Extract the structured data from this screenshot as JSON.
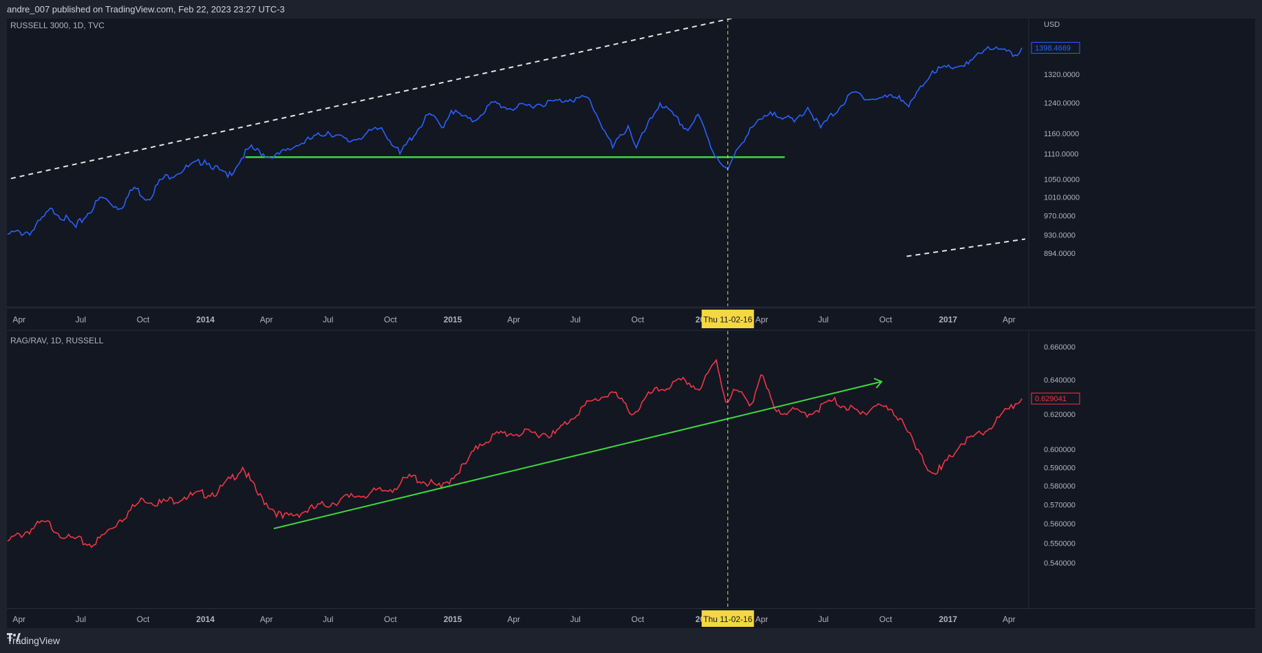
{
  "header": {
    "text": "andre_007 published on TradingView.com, Feb 22, 2023 23:27 UTC-3"
  },
  "footer": {
    "brand": "TradingView",
    "logo_icon": "tradingview-logo-icon"
  },
  "colors": {
    "background": "#131722",
    "frame": "#1e222d",
    "blue_series": "#2962ff",
    "red_series": "#f23645",
    "green_line": "#3cdc3c",
    "crosshair": "#f5d742",
    "dashed_channel": "#e6e6e6"
  },
  "crosshair": {
    "label": "Thu 11-02-16"
  },
  "chart_data": [
    {
      "type": "line",
      "legend": "RUSSELL 3000, 1D, TVC",
      "currency": "USD",
      "y_ticks": [
        "1320.0000",
        "1240.0000",
        "1160.0000",
        "1110.0000",
        "1050.0000",
        "1010.0000",
        "970.0000",
        "930.0000",
        "894.0000"
      ],
      "y_tick_values": [
        1320,
        1240,
        1160,
        1110,
        1050,
        1010,
        970,
        930,
        894
      ],
      "last_value": "1398.4669",
      "x_ticks": [
        "Apr",
        "Jul",
        "Oct",
        "2014",
        "Apr",
        "Jul",
        "Oct",
        "2015",
        "Apr",
        "Jul",
        "Oct",
        "20",
        "Apr",
        "Jul",
        "Oct",
        "2017",
        "Apr"
      ],
      "series": [
        {
          "color": "#2962ff",
          "points": [
            [
              "2013-03-15",
              932
            ],
            [
              "2013-04-20",
              938
            ],
            [
              "2013-05-20",
              985
            ],
            [
              "2013-06-24",
              946
            ],
            [
              "2013-08-01",
              1010
            ],
            [
              "2013-08-28",
              985
            ],
            [
              "2013-09-18",
              1032
            ],
            [
              "2013-10-08",
              1005
            ],
            [
              "2013-10-28",
              1050
            ],
            [
              "2013-12-31",
              1095
            ],
            [
              "2014-02-03",
              1055
            ],
            [
              "2014-03-07",
              1125
            ],
            [
              "2014-04-11",
              1100
            ],
            [
              "2014-05-15",
              1130
            ],
            [
              "2014-07-01",
              1165
            ],
            [
              "2014-07-31",
              1140
            ],
            [
              "2014-09-18",
              1175
            ],
            [
              "2014-10-15",
              1110
            ],
            [
              "2014-11-28",
              1212
            ],
            [
              "2014-12-16",
              1175
            ],
            [
              "2014-12-30",
              1220
            ],
            [
              "2015-01-30",
              1190
            ],
            [
              "2015-03-02",
              1242
            ],
            [
              "2015-03-25",
              1225
            ],
            [
              "2015-06-23",
              1250
            ],
            [
              "2015-07-20",
              1254
            ],
            [
              "2015-08-25",
              1125
            ],
            [
              "2015-09-17",
              1180
            ],
            [
              "2015-09-29",
              1125
            ],
            [
              "2015-11-03",
              1240
            ],
            [
              "2015-12-14",
              1168
            ],
            [
              "2015-12-29",
              1210
            ],
            [
              "2016-01-20",
              1115
            ],
            [
              "2016-02-11",
              1073
            ],
            [
              "2016-03-15",
              1175
            ],
            [
              "2016-04-20",
              1215
            ],
            [
              "2016-05-19",
              1190
            ],
            [
              "2016-06-08",
              1228
            ],
            [
              "2016-06-27",
              1175
            ],
            [
              "2016-08-15",
              1270
            ],
            [
              "2016-09-09",
              1250
            ],
            [
              "2016-10-21",
              1260
            ],
            [
              "2016-11-04",
              1230
            ],
            [
              "2016-12-09",
              1330
            ],
            [
              "2017-01-31",
              1350
            ],
            [
              "2017-03-01",
              1402
            ],
            [
              "2017-04-13",
              1375
            ],
            [
              "2017-04-20",
              1398.47
            ]
          ]
        }
      ],
      "annotations": [
        {
          "kind": "horizontal-support",
          "color": "#3cdc3c",
          "value": 1102,
          "from": "2014-03-01",
          "to": "2016-05-05"
        },
        {
          "kind": "channel-upper",
          "style": "dashed",
          "from": [
            "2013-03-20",
            1052
          ],
          "to": [
            "2016-05-05",
            1530
          ]
        },
        {
          "kind": "channel-lower",
          "style": "dashed",
          "from": [
            "2016-11-01",
            888
          ],
          "to": [
            "2017-04-25",
            922
          ]
        }
      ]
    },
    {
      "type": "line",
      "legend": "RAG/RAV, 1D, RUSSELL",
      "y_ticks": [
        "0.660000",
        "0.640000",
        "0.620000",
        "0.600000",
        "0.590000",
        "0.580000",
        "0.570000",
        "0.560000",
        "0.550000",
        "0.540000"
      ],
      "y_tick_values": [
        0.66,
        0.64,
        0.62,
        0.6,
        0.59,
        0.58,
        0.57,
        0.56,
        0.55,
        0.54
      ],
      "last_value": "0.629041",
      "x_ticks": [
        "Apr",
        "Jul",
        "Oct",
        "2014",
        "Apr",
        "Jul",
        "Oct",
        "2015",
        "Apr",
        "Jul",
        "Oct",
        "20",
        "Apr",
        "Jul",
        "Oct",
        "2017",
        "Apr"
      ],
      "series": [
        {
          "color": "#f23645",
          "points": [
            [
              "2013-03-15",
              0.551
            ],
            [
              "2013-05-10",
              0.561
            ],
            [
              "2013-06-10",
              0.553
            ],
            [
              "2013-07-20",
              0.549
            ],
            [
              "2013-08-28",
              0.562
            ],
            [
              "2013-10-01",
              0.573
            ],
            [
              "2013-10-28",
              0.571
            ],
            [
              "2013-12-01",
              0.574
            ],
            [
              "2014-01-20",
              0.577
            ],
            [
              "2014-02-25",
              0.59
            ],
            [
              "2014-03-20",
              0.575
            ],
            [
              "2014-04-25",
              0.563
            ],
            [
              "2014-06-10",
              0.568
            ],
            [
              "2014-08-01",
              0.574
            ],
            [
              "2014-10-01",
              0.578
            ],
            [
              "2014-11-01",
              0.585
            ],
            [
              "2014-12-15",
              0.579
            ],
            [
              "2015-01-20",
              0.592
            ],
            [
              "2015-02-10",
              0.603
            ],
            [
              "2015-03-10",
              0.609
            ],
            [
              "2015-06-01",
              0.609
            ],
            [
              "2015-07-15",
              0.625
            ],
            [
              "2015-08-24",
              0.633
            ],
            [
              "2015-09-25",
              0.62
            ],
            [
              "2015-10-20",
              0.632
            ],
            [
              "2015-12-10",
              0.64
            ],
            [
              "2015-12-31",
              0.634
            ],
            [
              "2016-01-25",
              0.652
            ],
            [
              "2016-02-08",
              0.627
            ],
            [
              "2016-02-22",
              0.634
            ],
            [
              "2016-03-17",
              0.626
            ],
            [
              "2016-03-31",
              0.643
            ],
            [
              "2016-04-20",
              0.623
            ],
            [
              "2016-06-10",
              0.62
            ],
            [
              "2016-07-15",
              0.628
            ],
            [
              "2016-08-25",
              0.62
            ],
            [
              "2016-09-20",
              0.626
            ],
            [
              "2016-10-25",
              0.617
            ],
            [
              "2016-11-15",
              0.6
            ],
            [
              "2016-12-05",
              0.588
            ],
            [
              "2016-12-22",
              0.589
            ],
            [
              "2017-01-20",
              0.603
            ],
            [
              "2017-02-25",
              0.61
            ],
            [
              "2017-04-01",
              0.623
            ],
            [
              "2017-04-20",
              0.629
            ]
          ]
        }
      ],
      "annotations": [
        {
          "kind": "trend-arrow",
          "color": "#3cdc3c",
          "from": [
            "2014-04-12",
            0.5575
          ],
          "to": [
            "2016-09-25",
            0.639
          ]
        }
      ]
    }
  ]
}
